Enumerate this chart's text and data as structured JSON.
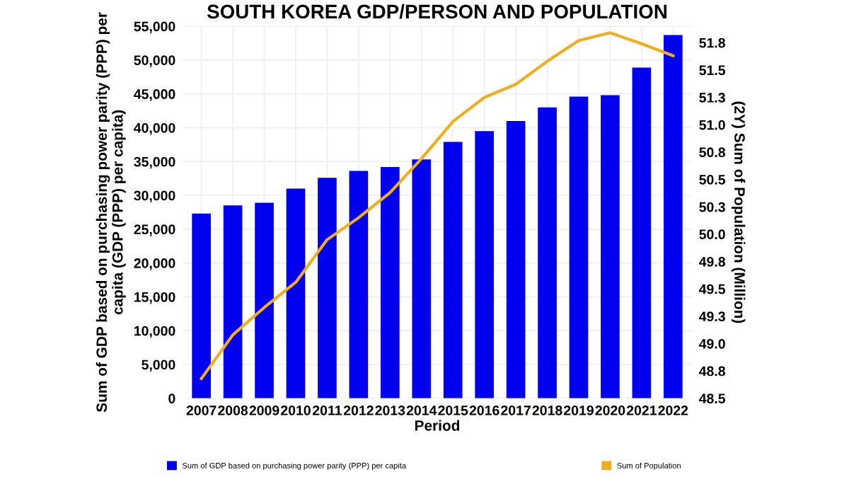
{
  "chart_data": {
    "type": "bar",
    "title": "SOUTH KOREA GDP/PERSON AND POPULATION",
    "xlabel": "Period",
    "ylabel": "Sum of GDP based on purchasing power parity (PPP) per capita (GDP (PPP) per capita)",
    "y2label": "(2Y) Sum of Population (Million)",
    "categories": [
      "2007",
      "2008",
      "2009",
      "2010",
      "2011",
      "2012",
      "2013",
      "2014",
      "2015",
      "2016",
      "2017",
      "2018",
      "2019",
      "2020",
      "2021",
      "2022"
    ],
    "series": [
      {
        "name": "Sum of GDP based on purchasing power parity (PPP) per capita",
        "color": "#0000ee",
        "values": [
          27300,
          28500,
          28900,
          31000,
          32600,
          33600,
          34200,
          35300,
          37900,
          39500,
          41000,
          43000,
          44600,
          44800,
          48900,
          53700
        ]
      },
      {
        "name": "Sum of Population",
        "type": "line",
        "axis": "y2",
        "color": "#f0ad1e",
        "values": [
          48.68,
          49.08,
          49.33,
          49.56,
          49.95,
          50.15,
          50.38,
          50.69,
          51.03,
          51.25,
          51.37,
          51.58,
          51.77,
          51.84,
          51.74,
          51.63
        ]
      }
    ],
    "ylim": [
      0,
      55000
    ],
    "yticks": [
      {
        "value": 0,
        "label": "0"
      },
      {
        "value": 5000,
        "label": "5,000"
      },
      {
        "value": 10000,
        "label": "10,000"
      },
      {
        "value": 15000,
        "label": "15,000"
      },
      {
        "value": 20000,
        "label": "20,000"
      },
      {
        "value": 25000,
        "label": "25,000"
      },
      {
        "value": 30000,
        "label": "30,000"
      },
      {
        "value": 35000,
        "label": "35,000"
      },
      {
        "value": 40000,
        "label": "40,000"
      },
      {
        "value": 45000,
        "label": "45,000"
      },
      {
        "value": 50000,
        "label": "50,000"
      },
      {
        "value": 55000,
        "label": "55,000"
      }
    ],
    "y2lim": [
      48.5,
      51.9
    ],
    "y2ticks": [
      48.5,
      {
        "value": 48.75,
        "label": "48.8"
      },
      {
        "value": 49,
        "label": "49.0"
      },
      {
        "value": 49.25,
        "label": "49.3"
      },
      49.5,
      {
        "value": 49.75,
        "label": "49.8"
      },
      {
        "value": 50,
        "label": "50.0"
      },
      {
        "value": 50.25,
        "label": "50.3"
      },
      50.5,
      {
        "value": 50.75,
        "label": "50.8"
      },
      {
        "value": 51,
        "label": "51.0"
      },
      {
        "value": 51.25,
        "label": "51.3"
      },
      51.5,
      {
        "value": 51.75,
        "label": "51.8"
      }
    ],
    "grid": true,
    "legend": "bottom",
    "marker": "none",
    "line_style": "solid"
  }
}
